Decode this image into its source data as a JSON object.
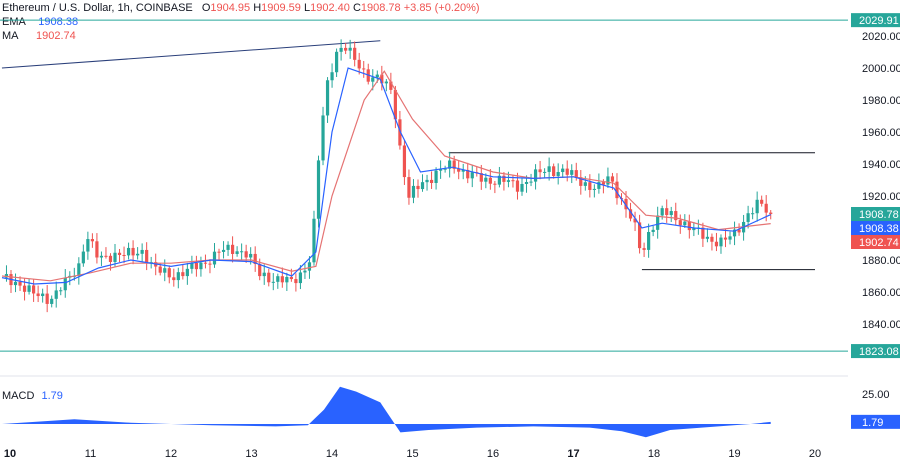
{
  "header": {
    "title": "Ethereum / U.S. Dollar, 1h, COINBASE",
    "open_label": "O",
    "open": "1904.95",
    "high_label": "H",
    "high": "1909.59",
    "low_label": "L",
    "low": "1902.40",
    "close_label": "C",
    "close": "1908.78",
    "change": "+3.85 (+0.20%)"
  },
  "indicators": {
    "ema_label": "EMA",
    "ema_value": "1908.38",
    "ma_label": "MA",
    "ma_value": "1902.74",
    "macd_label": "MACD",
    "macd_value": "1.79"
  },
  "colors": {
    "up": "#26a69a",
    "down": "#ef5350",
    "ema": "#2962ff",
    "ma": "#e57373",
    "macd": "#2962ff",
    "level": "#26a69a",
    "hline": "#131722"
  },
  "chart_data": {
    "type": "candlestick",
    "symbol": "Ethereum / U.S. Dollar",
    "interval": "1h",
    "price_axis": {
      "ticks": [
        1840,
        1860,
        1880,
        1900,
        1920,
        1940,
        1960,
        1980,
        2000,
        2020
      ],
      "range": [
        1823,
        2030
      ]
    },
    "time_axis": {
      "labels": [
        "10",
        "11",
        "12",
        "13",
        "14",
        "15",
        "16",
        "17",
        "18",
        "19",
        "20"
      ]
    },
    "level_tags": [
      {
        "label": "2029.91",
        "value": 2029.91,
        "kind": "level"
      },
      {
        "label": "1908.78",
        "value": 1908.78,
        "kind": "close"
      },
      {
        "label": "1908.38",
        "value": 1908.38,
        "kind": "ema"
      },
      {
        "label": "1902.74",
        "value": 1902.74,
        "kind": "ma"
      },
      {
        "label": "1823.08",
        "value": 1823.08,
        "kind": "level"
      }
    ],
    "horizontal_levels": [
      2029.91,
      1823.08
    ],
    "drawn_lines": [
      {
        "from": [
          "9.9",
          2000
        ],
        "to": [
          "14.6",
          2017
        ]
      },
      {
        "from": [
          "15.45",
          1947
        ],
        "to": [
          "20.0",
          1947
        ]
      },
      {
        "from": [
          "17.85",
          1874
        ],
        "to": [
          "20.0",
          1874
        ]
      }
    ],
    "close_path": [
      [
        "9.9",
        1869
      ],
      [
        "10.1",
        1866
      ],
      [
        "10.3",
        1858
      ],
      [
        "10.5",
        1856
      ],
      [
        "10.7",
        1866
      ],
      [
        "10.85",
        1876
      ],
      [
        "10.95",
        1896
      ],
      [
        "11.1",
        1880
      ],
      [
        "11.3",
        1884
      ],
      [
        "11.5",
        1883
      ],
      [
        "11.65",
        1886
      ],
      [
        "11.8",
        1874
      ],
      [
        "12.0",
        1870
      ],
      [
        "12.2",
        1873
      ],
      [
        "12.4",
        1878
      ],
      [
        "12.6",
        1885
      ],
      [
        "12.8",
        1887
      ],
      [
        "12.95",
        1884
      ],
      [
        "13.1",
        1871
      ],
      [
        "13.3",
        1868
      ],
      [
        "13.5",
        1866
      ],
      [
        "13.65",
        1874
      ],
      [
        "13.75",
        1883
      ],
      [
        "13.85",
        1955
      ],
      [
        "13.95",
        1993
      ],
      [
        "14.05",
        2010
      ],
      [
        "14.15",
        2013
      ],
      [
        "14.3",
        2004
      ],
      [
        "14.45",
        1995
      ],
      [
        "14.6",
        1992
      ],
      [
        "14.75",
        1986
      ],
      [
        "14.85",
        1948
      ],
      [
        "14.95",
        1918
      ],
      [
        "15.1",
        1928
      ],
      [
        "15.3",
        1934
      ],
      [
        "15.5",
        1940
      ],
      [
        "15.7",
        1933
      ],
      [
        "15.9",
        1930
      ],
      [
        "16.1",
        1930
      ],
      [
        "16.3",
        1926
      ],
      [
        "16.5",
        1932
      ],
      [
        "16.7",
        1937
      ],
      [
        "16.9",
        1935
      ],
      [
        "17.1",
        1929
      ],
      [
        "17.3",
        1924
      ],
      [
        "17.45",
        1932
      ],
      [
        "17.6",
        1917
      ],
      [
        "17.75",
        1902
      ],
      [
        "17.85",
        1883
      ],
      [
        "17.95",
        1900
      ],
      [
        "18.1",
        1910
      ],
      [
        "18.3",
        1906
      ],
      [
        "18.5",
        1898
      ],
      [
        "18.7",
        1893
      ],
      [
        "18.85",
        1891
      ],
      [
        "19.0",
        1896
      ],
      [
        "19.15",
        1908
      ],
      [
        "19.3",
        1915
      ],
      [
        "19.45",
        1908.78
      ]
    ],
    "ema_path": [
      [
        "9.9",
        1869
      ],
      [
        "10.3",
        1865
      ],
      [
        "10.7",
        1866
      ],
      [
        "11.1",
        1875
      ],
      [
        "11.5",
        1880
      ],
      [
        "12.0",
        1876
      ],
      [
        "12.5",
        1880
      ],
      [
        "13.0",
        1879
      ],
      [
        "13.5",
        1870
      ],
      [
        "13.8",
        1885
      ],
      [
        "14.0",
        1960
      ],
      [
        "14.2",
        2000
      ],
      [
        "14.6",
        1993
      ],
      [
        "14.85",
        1960
      ],
      [
        "15.1",
        1935
      ],
      [
        "15.5",
        1938
      ],
      [
        "16.0",
        1932
      ],
      [
        "16.5",
        1931
      ],
      [
        "17.0",
        1932
      ],
      [
        "17.5",
        1925
      ],
      [
        "17.85",
        1900
      ],
      [
        "18.1",
        1903
      ],
      [
        "18.5",
        1900
      ],
      [
        "19.0",
        1898
      ],
      [
        "19.45",
        1908.38
      ]
    ],
    "ma_path": [
      [
        "9.9",
        1870
      ],
      [
        "10.5",
        1867
      ],
      [
        "11.0",
        1872
      ],
      [
        "11.5",
        1878
      ],
      [
        "12.0",
        1878
      ],
      [
        "12.5",
        1880
      ],
      [
        "13.0",
        1880
      ],
      [
        "13.5",
        1873
      ],
      [
        "13.8",
        1876
      ],
      [
        "14.0",
        1920
      ],
      [
        "14.4",
        1980
      ],
      [
        "14.65",
        1998
      ],
      [
        "15.0",
        1968
      ],
      [
        "15.4",
        1945
      ],
      [
        "16.0",
        1935
      ],
      [
        "16.5",
        1931
      ],
      [
        "17.0",
        1932
      ],
      [
        "17.5",
        1928
      ],
      [
        "17.9",
        1908
      ],
      [
        "18.3",
        1906
      ],
      [
        "18.8",
        1899
      ],
      [
        "19.45",
        1902.74
      ]
    ],
    "macd": {
      "axis_ticks": [
        25.0
      ],
      "axis_labels": [
        "25.00"
      ],
      "path": [
        [
          "9.9",
          0
        ],
        [
          "10.8",
          4
        ],
        [
          "11.5",
          1
        ],
        [
          "12.5",
          -1
        ],
        [
          "13.3",
          -2
        ],
        [
          "13.7",
          -1
        ],
        [
          "13.9",
          12
        ],
        [
          "14.1",
          31
        ],
        [
          "14.3",
          27
        ],
        [
          "14.6",
          18
        ],
        [
          "14.85",
          -7
        ],
        [
          "15.2",
          -5
        ],
        [
          "15.8",
          -3
        ],
        [
          "16.5",
          -2
        ],
        [
          "17.2",
          -3
        ],
        [
          "17.6",
          -6
        ],
        [
          "17.9",
          -11
        ],
        [
          "18.2",
          -5
        ],
        [
          "18.8",
          -2
        ],
        [
          "19.2",
          0
        ],
        [
          "19.45",
          1.79
        ]
      ]
    }
  }
}
